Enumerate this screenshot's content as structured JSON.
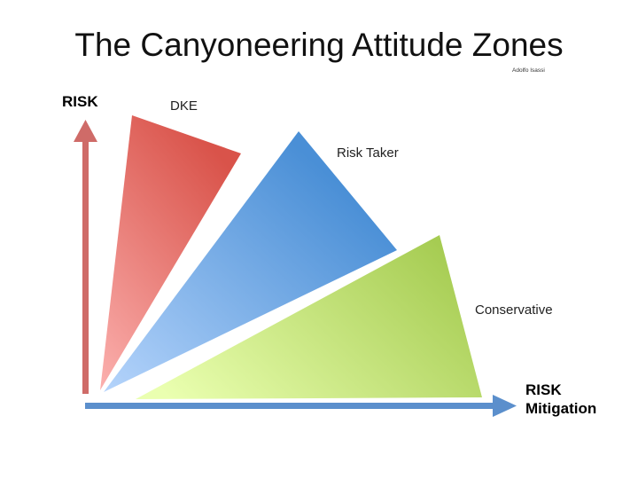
{
  "title": "The Canyoneering Attitude Zones",
  "author": "Adolfo Isassi",
  "axes": {
    "y_label": "RISK",
    "x_label_line1": "RISK",
    "x_label_line2": "Mitigation"
  },
  "zones": [
    {
      "id": "dke",
      "label": "DKE",
      "color": "#d9534a"
    },
    {
      "id": "risk-taker",
      "label": "Risk Taker",
      "color": "#4a8fd6"
    },
    {
      "id": "conservative",
      "label": "Conservative",
      "color": "#a6cc52"
    }
  ],
  "colors": {
    "y_axis_arrow": "#cf6b68",
    "x_axis_arrow": "#5b8fcc"
  }
}
